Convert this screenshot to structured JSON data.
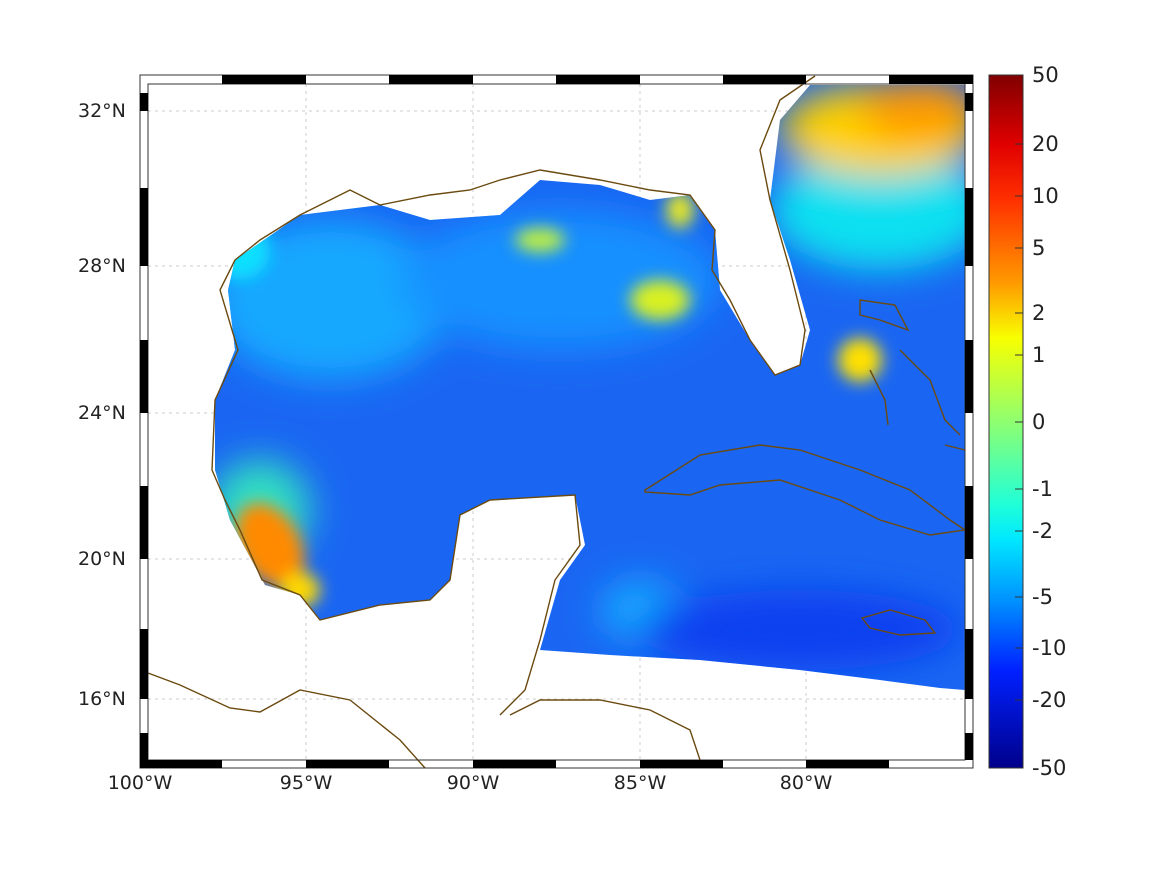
{
  "map": {
    "type": "heatmap",
    "lat_labels": [
      "32°N",
      "28°N",
      "24°N",
      "20°N",
      "16°N"
    ],
    "lon_labels": [
      "100°W",
      "95°W",
      "90°W",
      "85°W",
      "80°W"
    ],
    "colormap": "jet",
    "colorbar_ticks": [
      "50",
      "20",
      "10",
      "5",
      "2",
      "1",
      "0",
      "-1",
      "-2",
      "-5",
      "-10",
      "-20",
      "-50"
    ],
    "colors": {
      "ocean_base": "#1a66f2",
      "coast": "#6b4a10",
      "hot": "#ff8a00",
      "warm": "#ffd800",
      "cyan": "#10e6ff"
    }
  }
}
